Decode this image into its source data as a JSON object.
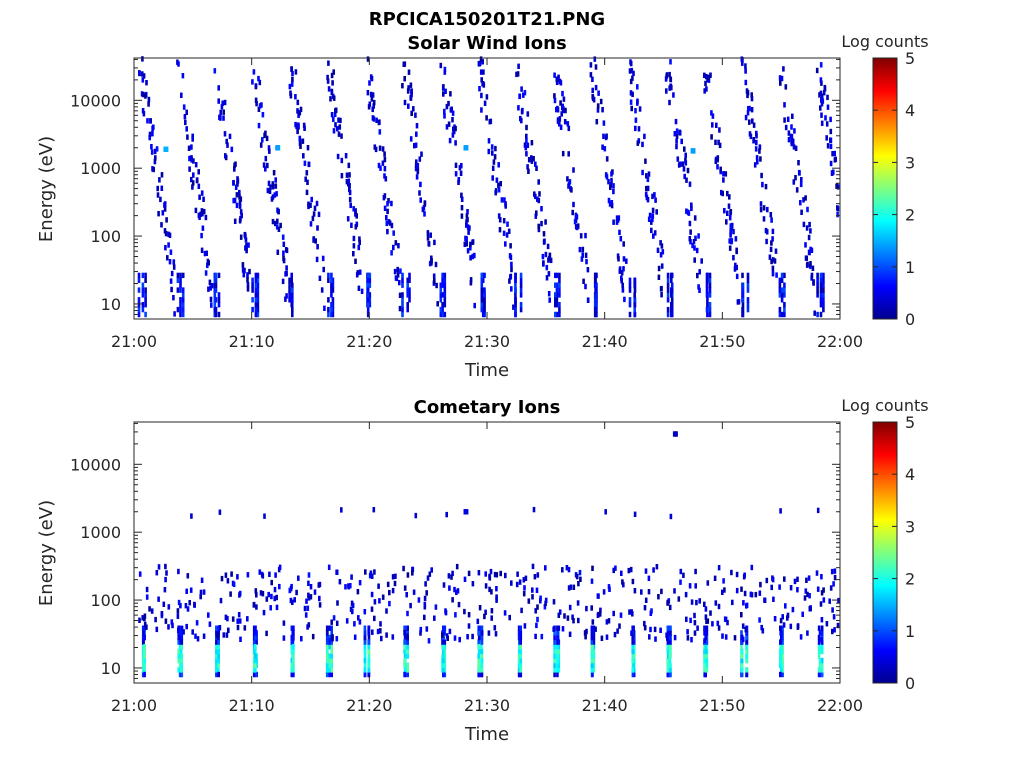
{
  "figure_title": "RPCICA150201T21.PNG",
  "chart_data": [
    {
      "type": "heatmap",
      "title": "Solar Wind Ions",
      "xlabel": "Time",
      "ylabel": "Energy (eV)",
      "x_ticks": [
        "21:00",
        "21:10",
        "21:20",
        "21:30",
        "21:40",
        "21:50",
        "22:00"
      ],
      "x_range_minutes": [
        0,
        60
      ],
      "y_scale": "log",
      "y_range": [
        6,
        42000
      ],
      "y_ticks": [
        {
          "value": 10,
          "label": "10"
        },
        {
          "value": 100,
          "label": "100"
        },
        {
          "value": 1000,
          "label": "1000"
        },
        {
          "value": 10000,
          "label": "10000"
        }
      ],
      "colorbar": {
        "label": "Log counts",
        "range": [
          0,
          5
        ],
        "ticks": [
          "0",
          "1",
          "2",
          "3",
          "4",
          "5"
        ],
        "colormap": "jet"
      },
      "sweep_period_minutes": 3.2,
      "dominant_bands": [
        {
          "energy_eV": [
            6,
            28
          ],
          "level_log_counts": [
            0.2,
            1.2
          ],
          "description": "low-energy bursts at start of each sweep"
        }
      ],
      "notable_cells": [
        {
          "time_min": 2.5,
          "energy_eV": 1900,
          "log_counts": 1.5
        },
        {
          "time_min": 12.0,
          "energy_eV": 2000,
          "log_counts": 1.4
        },
        {
          "time_min": 28.0,
          "energy_eV": 2000,
          "log_counts": 1.4
        },
        {
          "time_min": 47.3,
          "energy_eV": 1800,
          "log_counts": 1.4
        }
      ]
    },
    {
      "type": "heatmap",
      "title": "Cometary Ions",
      "xlabel": "Time",
      "ylabel": "Energy (eV)",
      "x_ticks": [
        "21:00",
        "21:10",
        "21:20",
        "21:30",
        "21:40",
        "21:50",
        "22:00"
      ],
      "x_range_minutes": [
        0,
        60
      ],
      "y_scale": "log",
      "y_range": [
        6,
        42000
      ],
      "y_ticks": [
        {
          "value": 10,
          "label": "10"
        },
        {
          "value": 100,
          "label": "100"
        },
        {
          "value": 1000,
          "label": "1000"
        },
        {
          "value": 10000,
          "label": "10000"
        }
      ],
      "colorbar": {
        "label": "Log counts",
        "range": [
          0,
          5
        ],
        "ticks": [
          "0",
          "1",
          "2",
          "3",
          "4",
          "5"
        ],
        "colormap": "jet"
      },
      "sweep_period_minutes": 3.2,
      "dominant_bands": [
        {
          "energy_eV": [
            8,
            25
          ],
          "level_log_counts": [
            1.5,
            2.4
          ],
          "description": "cometary ion peak near 10-20 eV each sweep"
        },
        {
          "energy_eV": [
            25,
            300
          ],
          "level_log_counts": [
            0.2,
            1.0
          ],
          "description": "sparse tail up to few hundred eV"
        }
      ],
      "notable_cells": [
        {
          "time_min": 45.8,
          "energy_eV": 28000,
          "log_counts": 0.3
        },
        {
          "time_min": 28.0,
          "energy_eV": 2000,
          "log_counts": 0.5
        }
      ]
    }
  ]
}
